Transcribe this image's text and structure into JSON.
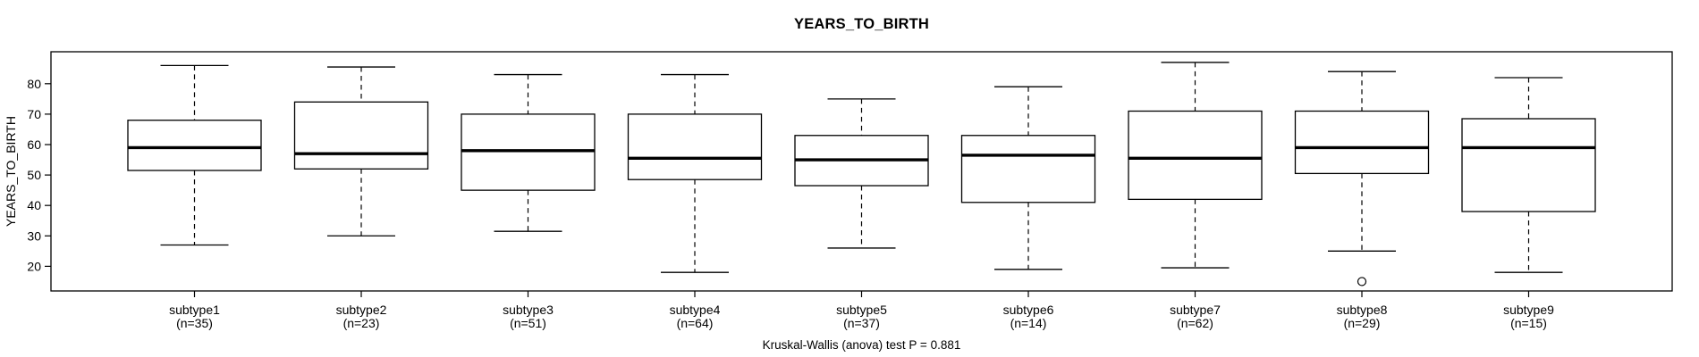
{
  "chart_data": {
    "type": "boxplot",
    "title": "YEARS_TO_BIRTH",
    "ylabel": "YEARS_TO_BIRTH",
    "footnote": "Kruskal-Wallis (anova) test P = 0.881",
    "yticks": [
      20,
      30,
      40,
      50,
      60,
      70,
      80
    ],
    "ylim": [
      11.9,
      90.5
    ],
    "line_color": "#000000",
    "background": "#ffffff",
    "grid": "off",
    "legend": "none",
    "groups": [
      {
        "label": "subtype1",
        "n": 35,
        "n_label": "(n=35)",
        "low": 27,
        "q1": 51.5,
        "median": 59,
        "q3": 68,
        "high": 86,
        "outliers": []
      },
      {
        "label": "subtype2",
        "n": 23,
        "n_label": "(n=23)",
        "low": 30,
        "q1": 52,
        "median": 57,
        "q3": 74,
        "high": 85.5,
        "outliers": []
      },
      {
        "label": "subtype3",
        "n": 51,
        "n_label": "(n=51)",
        "low": 31.5,
        "q1": 45,
        "median": 58,
        "q3": 70,
        "high": 83,
        "outliers": []
      },
      {
        "label": "subtype4",
        "n": 64,
        "n_label": "(n=64)",
        "low": 18,
        "q1": 48.5,
        "median": 55.5,
        "q3": 70,
        "high": 83,
        "outliers": []
      },
      {
        "label": "subtype5",
        "n": 37,
        "n_label": "(n=37)",
        "low": 26,
        "q1": 46.5,
        "median": 55,
        "q3": 63,
        "high": 75,
        "outliers": []
      },
      {
        "label": "subtype6",
        "n": 14,
        "n_label": "(n=14)",
        "low": 19,
        "q1": 41,
        "median": 56.5,
        "q3": 63,
        "high": 79,
        "outliers": []
      },
      {
        "label": "subtype7",
        "n": 62,
        "n_label": "(n=62)",
        "low": 19.5,
        "q1": 42,
        "median": 55.5,
        "q3": 71,
        "high": 87,
        "outliers": []
      },
      {
        "label": "subtype8",
        "n": 29,
        "n_label": "(n=29)",
        "low": 25,
        "q1": 50.5,
        "median": 59,
        "q3": 71,
        "high": 84,
        "outliers": [
          15
        ]
      },
      {
        "label": "subtype9",
        "n": 15,
        "n_label": "(n=15)",
        "low": 18,
        "q1": 38,
        "median": 59,
        "q3": 68.5,
        "high": 82,
        "outliers": []
      }
    ]
  }
}
